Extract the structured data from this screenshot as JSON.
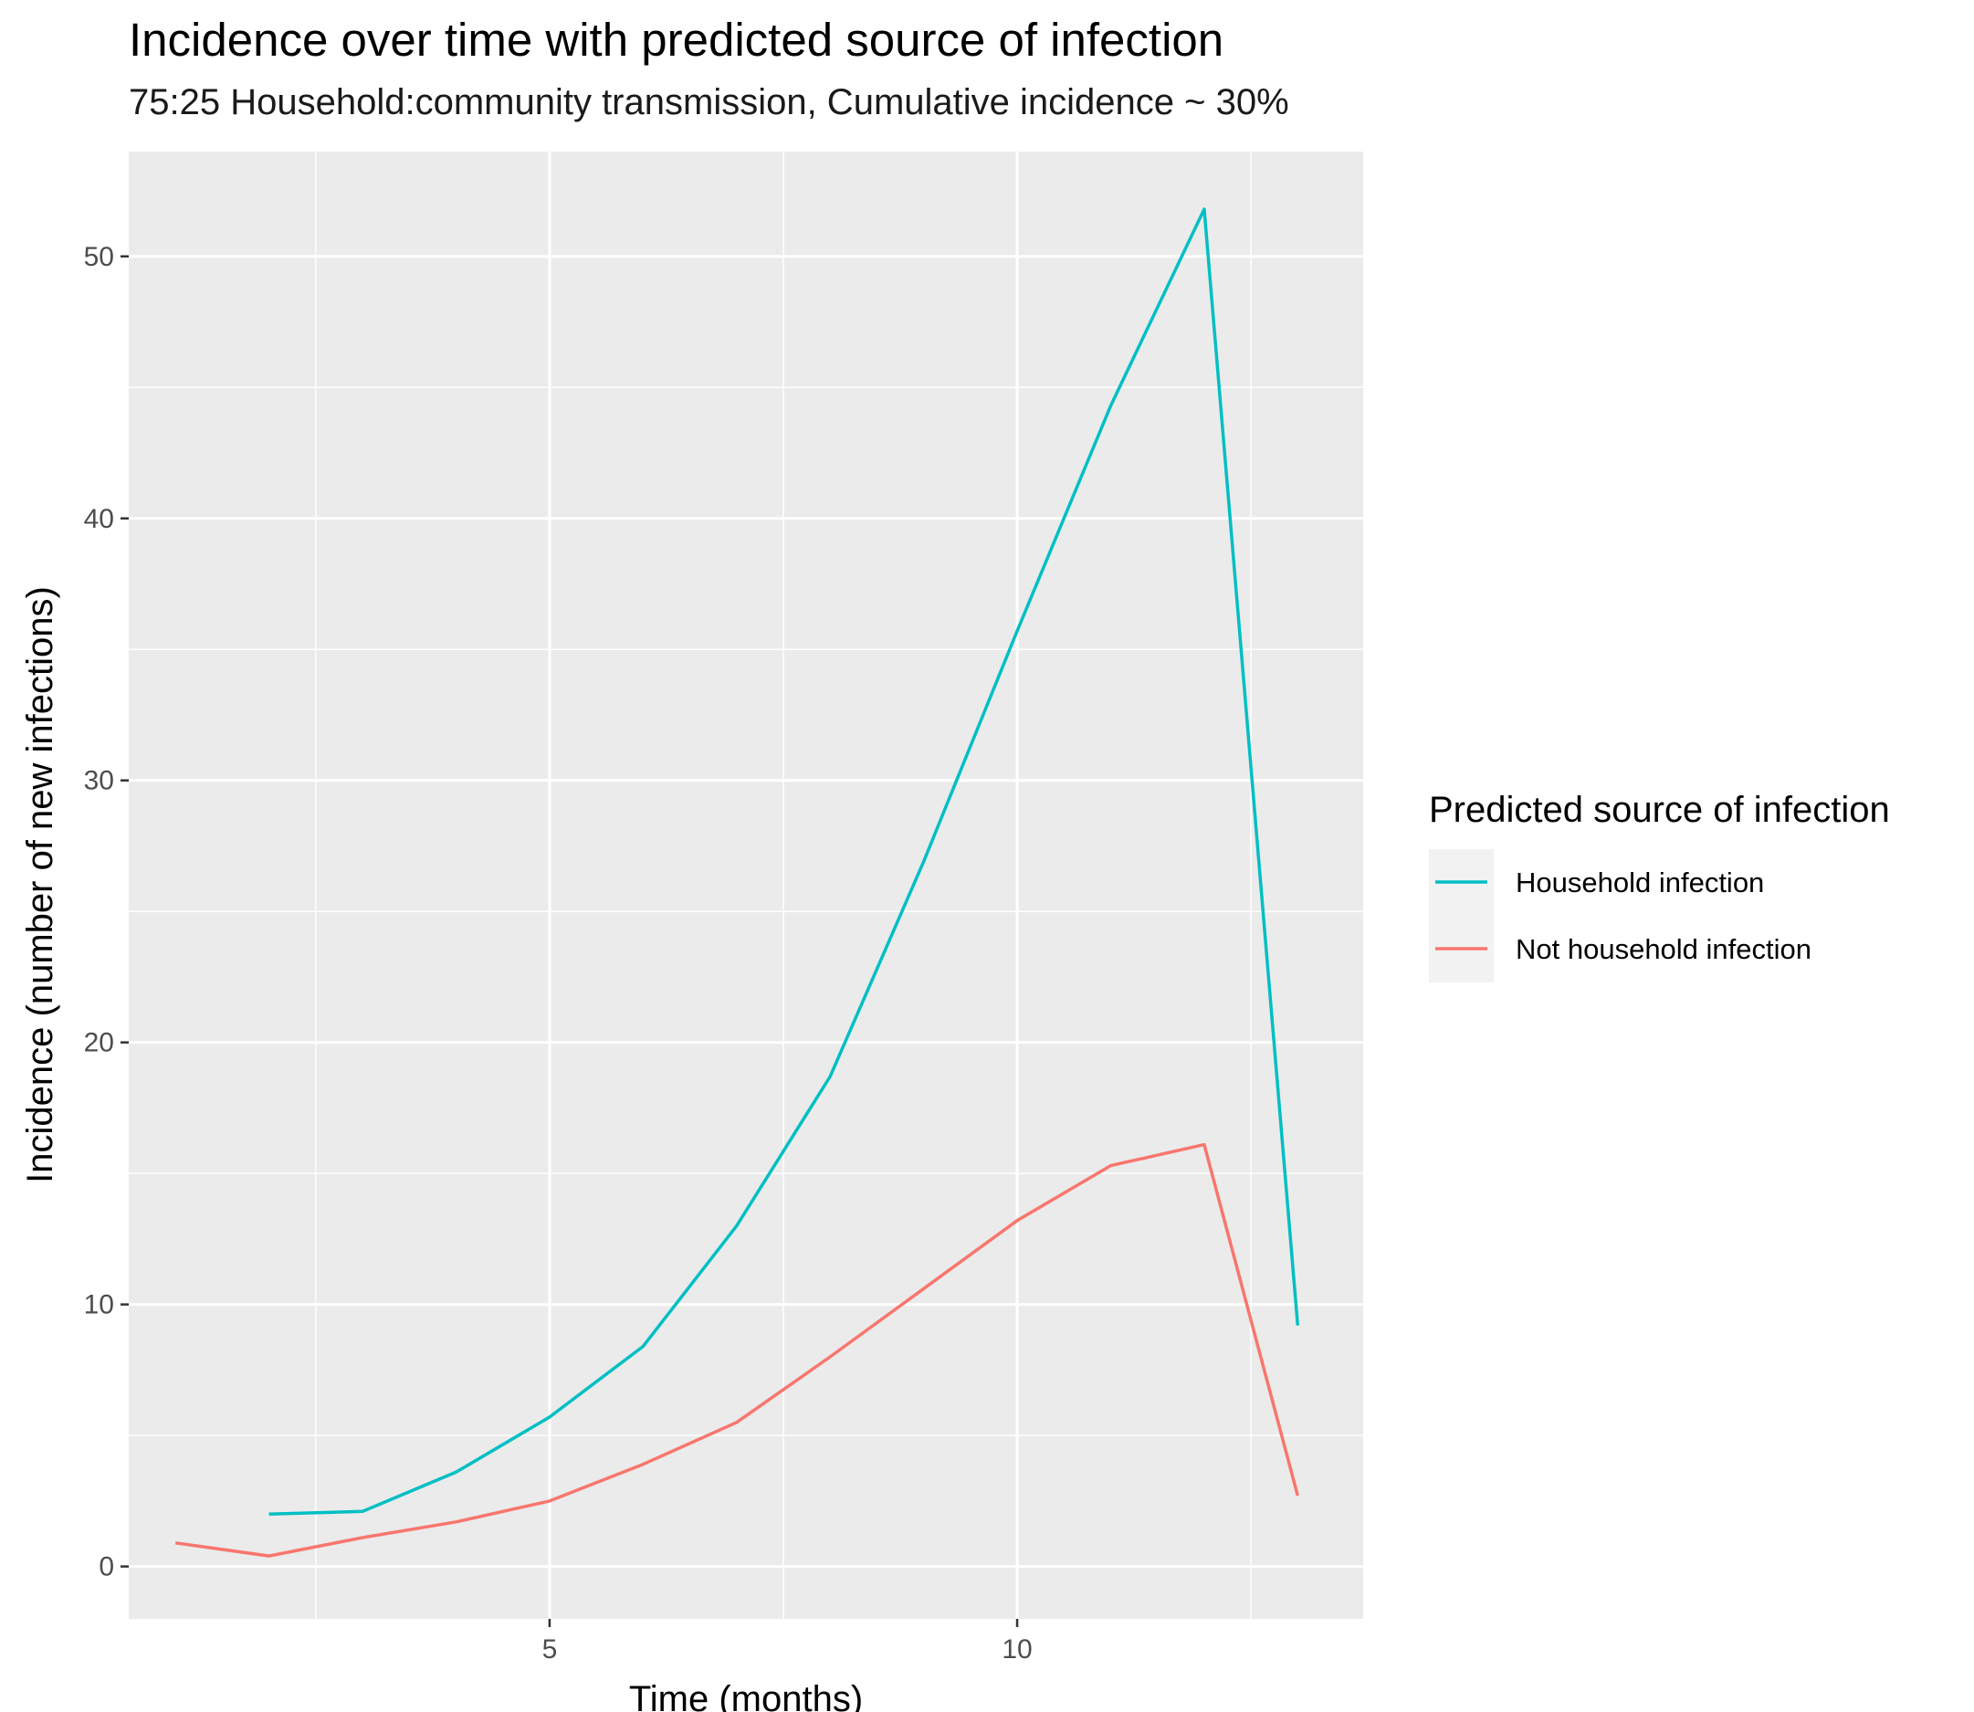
{
  "chart_data": {
    "type": "line",
    "title": "Incidence over time with predicted source of infection",
    "subtitle": "75:25 Household:community transmission, Cumulative incidence ~ 30%",
    "xlabel": "Time (months)",
    "ylabel": "Incidence (number of new infections)",
    "xlim": [
      0.5,
      13.7
    ],
    "ylim": [
      -2,
      54
    ],
    "x_ticks": [
      5,
      10
    ],
    "y_ticks": [
      0,
      10,
      20,
      30,
      40,
      50
    ],
    "grid": true,
    "legend": {
      "title": "Predicted source of infection",
      "position": "right"
    },
    "series": [
      {
        "name": "Household infection",
        "color": "#00BFC4",
        "x": [
          2,
          3,
          4,
          5,
          6,
          7,
          8,
          9,
          10,
          11,
          12,
          13
        ],
        "y": [
          2.0,
          2.1,
          3.6,
          5.7,
          8.4,
          13.0,
          18.7,
          26.9,
          35.7,
          44.3,
          51.8,
          9.2
        ]
      },
      {
        "name": "Not household infection",
        "color": "#F8766D",
        "x": [
          1,
          2,
          3,
          4,
          5,
          6,
          7,
          8,
          9,
          10,
          11,
          12,
          13
        ],
        "y": [
          0.9,
          0.4,
          1.1,
          1.7,
          2.5,
          3.9,
          5.5,
          8.0,
          10.6,
          13.2,
          15.3,
          16.1,
          2.7
        ]
      }
    ]
  }
}
